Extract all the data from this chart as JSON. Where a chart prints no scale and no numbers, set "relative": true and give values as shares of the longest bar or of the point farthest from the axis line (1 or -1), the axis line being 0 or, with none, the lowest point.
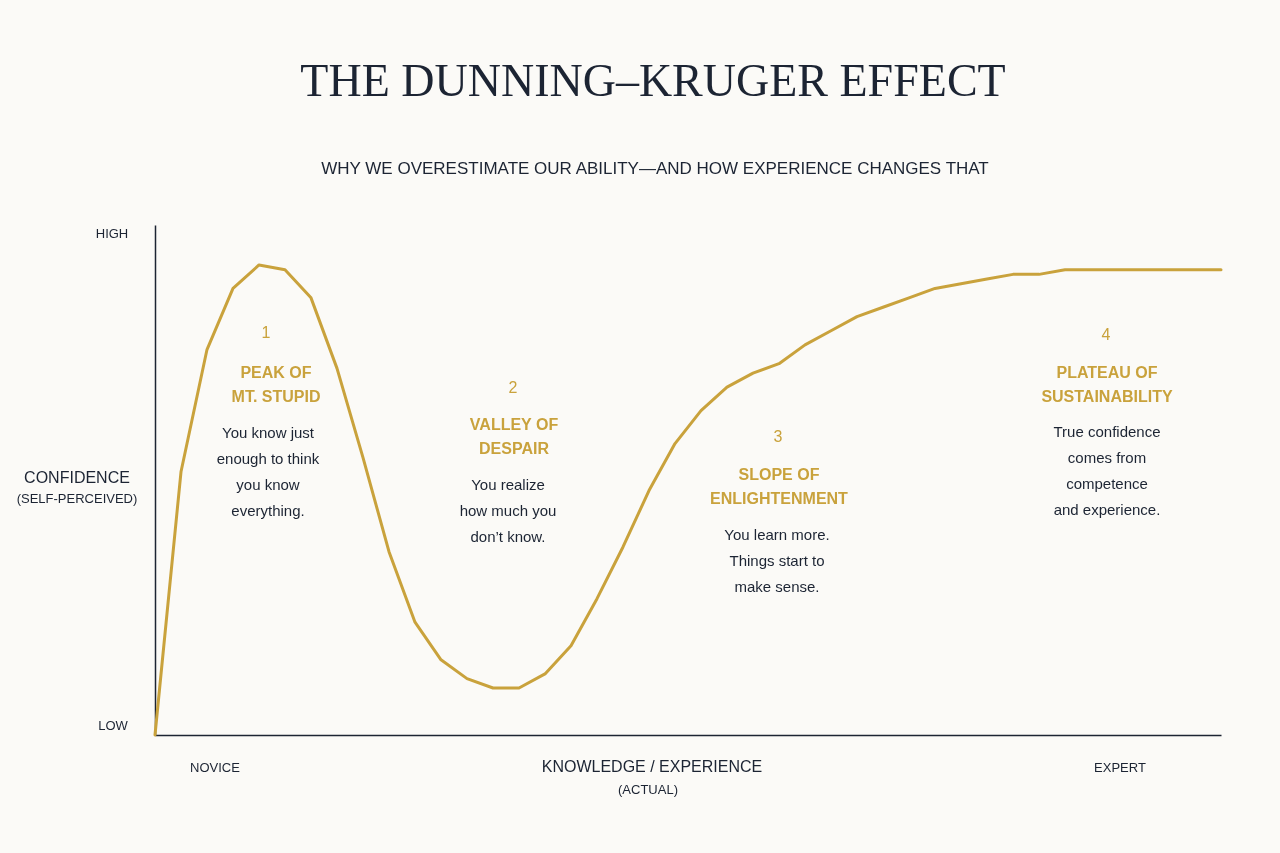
{
  "chart_data": {
    "type": "line",
    "title": "THE DUNNING–KRUGER EFFECT",
    "subtitle": "WHY WE OVERESTIMATE OUR ABILITY—AND HOW EXPERIENCE CHANGES THAT",
    "ylabel": "CONFIDENCE",
    "xlabel": "KNOWLEDGE / EXPERIENCE",
    "relative": true,
    "categories": [
      null,
      null,
      null,
      null,
      null,
      null,
      null,
      null,
      null,
      null,
      null,
      null,
      null,
      null,
      null,
      null,
      null,
      null,
      null,
      null,
      null,
      null,
      null,
      null,
      null,
      null,
      null,
      null,
      null,
      null,
      null,
      null,
      null,
      null,
      null,
      null,
      null,
      null,
      null,
      null,
      null,
      null
    ],
    "series": [
      {
        "color": "#c9a23c",
        "values": [
          0,
          0.56,
          0.82,
          0.95,
          1,
          0.99,
          0.93,
          0.78,
          0.59,
          0.39,
          0.24,
          0.16,
          0.12,
          0.1,
          0.1,
          0.13,
          0.19,
          0.29,
          0.4,
          0.52,
          0.62,
          0.69,
          0.74,
          0.77,
          0.79,
          0.83,
          0.86,
          0.89,
          0.91,
          0.93,
          0.95,
          0.96,
          0.97,
          0.98,
          0.98,
          0.99,
          0.99,
          0.99,
          0.99,
          0.99,
          0.99,
          0.99
        ]
      }
    ],
    "annotations": [
      "HIGH",
      "LOW",
      "NOVICE",
      "EXPERT",
      "(SELF-PERCEIVED)",
      "(ACTUAL)",
      "1",
      "PEAK OF\nMT. STUPID",
      "You know just\nenough to think\nyou know\neverything.",
      "2",
      "VALLEY OF\nDESPAIR",
      "You realize\nhow much you\ndon’t know.",
      "3",
      "SLOPE OF\nENLIGHTENMENT",
      "You learn more.\nThings start to\nmake sense.",
      "4",
      "PLATEAU OF\nSUSTAINABILITY",
      "True confidence\ncomes from\ncompetence\nand experience."
    ]
  }
}
